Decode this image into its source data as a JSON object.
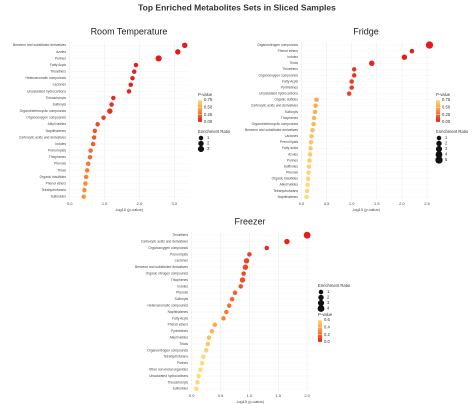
{
  "title": "Top Enriched Metabolites Sets in Sliced Samples",
  "chart_data": [
    {
      "type": "dot",
      "title": "Room Temperature",
      "xlabel": "-log10 (p-value)",
      "categories": [
        "Benzene and substituted derivatives",
        "Azoles",
        "Purines",
        "Fatty Acyls",
        "Thioethers",
        "Heteroaromatic compounds",
        "Lactones",
        "Unsaturated hydrocarbons",
        "Thiocarbonyls",
        "Sulfonyls",
        "Organoheterocyclic compounds",
        "Organooxygen compounds",
        "Alkyl halides",
        "Naphthalenes",
        "Carboxylic acids and derivatives",
        "Indoles",
        "Prenol lipids",
        "Thiophenes",
        "Phenols",
        "Thiols",
        "Organic trisulfides",
        "Phenol ethers",
        "Tetrahydrofurans",
        "Sulfonides"
      ],
      "values": [
        3.3,
        3.1,
        2.55,
        1.9,
        1.85,
        1.8,
        1.75,
        1.7,
        1.25,
        1.2,
        1.15,
        0.97,
        0.8,
        0.72,
        0.7,
        0.67,
        0.6,
        0.58,
        0.53,
        0.5,
        0.47,
        0.45,
        0.42,
        0.4
      ],
      "sizes": [
        2,
        2,
        3,
        1,
        1,
        1,
        1,
        1,
        1,
        1,
        2,
        1,
        1,
        1,
        1,
        1,
        1,
        1,
        1,
        1,
        1,
        1,
        1,
        1
      ],
      "xlim": [
        -0.05,
        3.45
      ],
      "xticks": [
        {
          "value": 0,
          "label": "0.0"
        },
        {
          "value": 1,
          "label": "1.0"
        },
        {
          "value": 2,
          "label": "2.0"
        },
        {
          "value": 3,
          "label": "3.0"
        }
      ],
      "grid": true,
      "color_legend": {
        "title": "P-value",
        "ticks": [
          {
            "value": 0.75,
            "label": "0.75"
          },
          {
            "value": 0.5,
            "label": "0.50"
          },
          {
            "value": 0.25,
            "label": "0.25"
          },
          {
            "value": 0,
            "label": "0.00"
          }
        ],
        "colors": [
          "#e31a1c",
          "#fd8d3c",
          "#fed976"
        ]
      },
      "size_legend": {
        "title": "Enrichment Ratio",
        "ticks": [
          1,
          2,
          3
        ]
      }
    },
    {
      "type": "dot",
      "title": "Fridge",
      "xlabel": "-log10 (p-value)",
      "categories": [
        "Organonitrogen compounds",
        "Phenol ethers",
        "Indoles",
        "Thiols",
        "Thioethers",
        "Organooxygen compounds",
        "Fatty Acyls",
        "Pyrimidines",
        "Unsaturated hydrocarbons",
        "Organic sulfides",
        "Carboxylic acids and derivatives",
        "Sulfonyls",
        "Thiophenes",
        "Organoheterocyclic compounds",
        "Benzene and substituted derivatives",
        "Lactones",
        "Prenol lipids",
        "Fatty acids",
        "Azoles",
        "Purines",
        "Sulfinoles",
        "Phenols",
        "Organic trisulfides",
        "Alkyl halides",
        "Tetrahydrofurans",
        "Naphthalenes"
      ],
      "values": [
        2.55,
        2.2,
        2.05,
        1.4,
        1.05,
        1.05,
        1.0,
        1.0,
        0.95,
        0.3,
        0.28,
        0.27,
        0.25,
        0.24,
        0.22,
        0.2,
        0.19,
        0.18,
        0.17,
        0.16,
        0.15,
        0.14,
        0.13,
        0.12,
        0.11,
        0.1
      ],
      "sizes": [
        5,
        1,
        2,
        2,
        1,
        1,
        1,
        1,
        1,
        1,
        1,
        1,
        1,
        1,
        1,
        1,
        1,
        1,
        1,
        1,
        1,
        1,
        1,
        1,
        1,
        1
      ],
      "xlim": [
        -0.03,
        2.6
      ],
      "xticks": [
        {
          "value": 0,
          "label": "0.0"
        },
        {
          "value": 0.5,
          "label": "0.5"
        },
        {
          "value": 1,
          "label": "1.0"
        },
        {
          "value": 1.5,
          "label": "1.5"
        },
        {
          "value": 2,
          "label": "2.0"
        },
        {
          "value": 2.5,
          "label": "2.5"
        }
      ],
      "grid": true,
      "color_legend": {
        "title": "P-value",
        "ticks": [
          {
            "value": 0.75,
            "label": "0.75"
          },
          {
            "value": 0.5,
            "label": "0.50"
          },
          {
            "value": 0.25,
            "label": "0.25"
          },
          {
            "value": 0,
            "label": "0.00"
          }
        ],
        "colors": [
          "#e31a1c",
          "#fd8d3c",
          "#fed976"
        ]
      },
      "size_legend": {
        "title": "Enrichment Ratio",
        "ticks": [
          1,
          2,
          3,
          4,
          5
        ]
      }
    },
    {
      "type": "dot",
      "title": "Freezer",
      "xlabel": "-log10 (p-value)",
      "categories": [
        "Thioethers",
        "Carboxylic acids and derivatives",
        "Organooxygen compounds",
        "Prenol lipids",
        "Lactones",
        "Benzene and substituted derivatives",
        "Organic nitrogen compounds",
        "Thiophenes",
        "Indoles",
        "Phenols",
        "Sulfonyls",
        "Heteroaromatic compounds",
        "Naphthalenes",
        "Fatty Acyls",
        "Phenol ethers",
        "Pyrimidines",
        "Alkyl halides",
        "Thiols",
        "Organonitrogen compounds",
        "Tetrahydrofurans",
        "Purines",
        "Other non-metal organides",
        "Unsaturated hydrocarbons",
        "Thiocarbonyls",
        "Sulfonides"
      ],
      "values": [
        2.0,
        1.65,
        1.3,
        1.0,
        0.95,
        0.93,
        0.9,
        0.88,
        0.85,
        0.75,
        0.7,
        0.65,
        0.6,
        0.55,
        0.4,
        0.35,
        0.3,
        0.28,
        0.25,
        0.2,
        0.18,
        0.15,
        0.12,
        0.1,
        0.08
      ],
      "sizes": [
        4,
        2,
        1,
        1,
        2,
        2,
        1,
        2,
        1,
        1,
        1,
        1,
        1,
        1,
        1,
        1,
        1,
        1,
        1,
        1,
        1,
        1,
        1,
        1,
        1
      ],
      "xlim": [
        -0.03,
        2.05
      ],
      "xticks": [
        {
          "value": 0,
          "label": "0.0"
        },
        {
          "value": 0.5,
          "label": "0.5"
        },
        {
          "value": 1,
          "label": "1.0"
        },
        {
          "value": 1.5,
          "label": "1.5"
        },
        {
          "value": 2,
          "label": "2.0"
        }
      ],
      "grid": true,
      "color_legend": {
        "title": "P-value",
        "ticks": [
          {
            "value": 0.6,
            "label": "0.6"
          },
          {
            "value": 0.4,
            "label": "0.4"
          },
          {
            "value": 0.2,
            "label": "0.2"
          },
          {
            "value": 0,
            "label": "0.0"
          }
        ],
        "colors": [
          "#e31a1c",
          "#fd8d3c",
          "#fed976"
        ]
      },
      "size_legend": {
        "title": "Enrichment Ratio",
        "ticks": [
          1,
          2,
          3,
          4
        ]
      }
    }
  ]
}
